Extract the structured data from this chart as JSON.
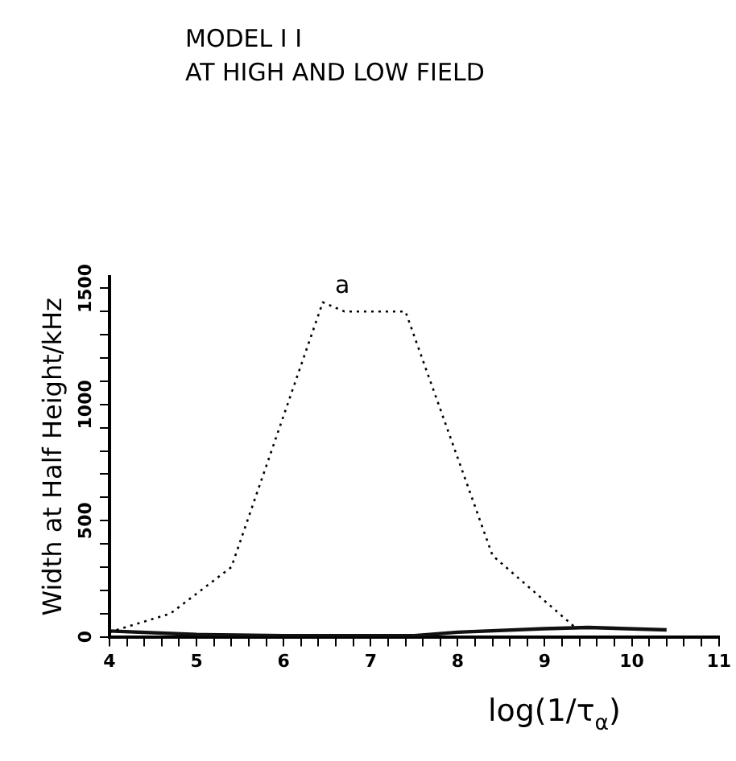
{
  "chart_data": {
    "type": "line",
    "title": "MODEL I I",
    "subtitle": "AT HIGH AND LOW FIELD",
    "xlabel": "log(1/τ$_{α}$)",
    "ylabel": "Width at Half Height/kHz",
    "annotations": [
      "a"
    ],
    "grid": false,
    "legend": false,
    "marker": "none",
    "xlim": [
      4,
      11
    ],
    "xticks": [
      4,
      {
        "value": 4.2,
        "label": null
      },
      {
        "value": 4.4,
        "label": null
      },
      {
        "value": 4.6,
        "label": null
      },
      {
        "value": 4.8,
        "label": null
      },
      5,
      {
        "value": 5.2,
        "label": null
      },
      {
        "value": 5.4,
        "label": null
      },
      {
        "value": 5.6,
        "label": null
      },
      {
        "value": 5.8,
        "label": null
      },
      6,
      {
        "value": 6.2,
        "label": null
      },
      {
        "value": 6.4,
        "label": null
      },
      {
        "value": 6.6,
        "label": null
      },
      {
        "value": 6.8,
        "label": null
      },
      7,
      {
        "value": 7.2,
        "label": null
      },
      {
        "value": 7.4,
        "label": null
      },
      {
        "value": 7.6,
        "label": null
      },
      {
        "value": 7.8,
        "label": null
      },
      8,
      {
        "value": 8.2,
        "label": null
      },
      {
        "value": 8.4,
        "label": null
      },
      {
        "value": 8.6,
        "label": null
      },
      {
        "value": 8.8,
        "label": null
      },
      9,
      {
        "value": 9.2,
        "label": null
      },
      {
        "value": 9.4,
        "label": null
      },
      {
        "value": 9.6,
        "label": null
      },
      {
        "value": 9.8,
        "label": null
      },
      10,
      {
        "value": 10.2,
        "label": null
      },
      {
        "value": 10.4,
        "label": null
      },
      {
        "value": 10.6,
        "label": null
      },
      {
        "value": 10.8,
        "label": null
      },
      11
    ],
    "ylim": [
      0,
      1550
    ],
    "yticks": [
      0,
      {
        "value": 100,
        "label": null
      },
      {
        "value": 200,
        "label": null
      },
      {
        "value": 300,
        "label": null
      },
      {
        "value": 400,
        "label": null
      },
      500,
      {
        "value": 600,
        "label": null
      },
      {
        "value": 700,
        "label": null
      },
      {
        "value": 800,
        "label": null
      },
      {
        "value": 900,
        "label": null
      },
      1000,
      {
        "value": 1100,
        "label": null
      },
      {
        "value": 1200,
        "label": null
      },
      {
        "value": 1300,
        "label": null
      },
      {
        "value": 1400,
        "label": null
      },
      1500
    ],
    "series": [
      {
        "color": "#000000",
        "line_style": "dotted",
        "x": [
          4,
          4.7,
          5.4,
          6.45,
          6.7,
          7.4,
          8.4,
          9.35
        ],
        "values": [
          20,
          100,
          300,
          1440,
          1400,
          1400,
          350,
          40
        ]
      },
      {
        "color": "#111111",
        "line_style": "solid",
        "x": [
          4,
          5,
          6,
          7,
          7.5,
          8,
          9,
          9.5,
          10.4
        ],
        "values": [
          25,
          10,
          5,
          5,
          5,
          20,
          35,
          40,
          30
        ]
      }
    ]
  }
}
